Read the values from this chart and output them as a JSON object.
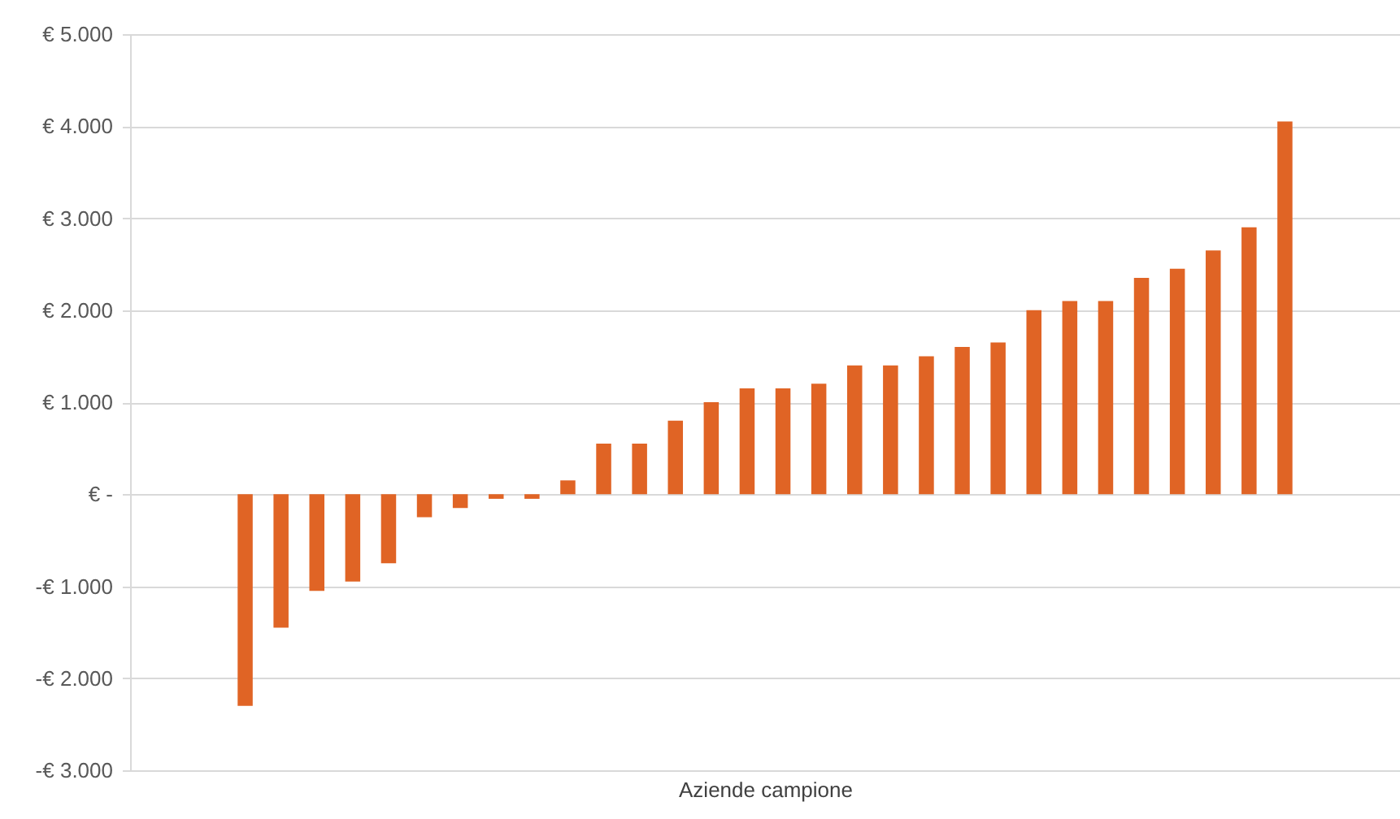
{
  "chart_data": {
    "type": "bar",
    "xlabel": "Aziende campione",
    "categories": [
      null,
      null,
      null,
      null,
      null,
      null,
      null,
      null,
      null,
      null,
      null,
      null,
      null,
      null,
      null,
      null,
      null,
      null,
      null,
      null,
      null,
      null,
      null,
      null,
      null,
      null,
      null,
      null,
      null,
      null,
      null,
      null,
      null,
      null,
      null,
      null
    ],
    "values": [
      null,
      null,
      null,
      -2300,
      -1450,
      -1050,
      -950,
      -750,
      -250,
      -150,
      -50,
      -50,
      150,
      550,
      550,
      800,
      1000,
      1150,
      1150,
      1200,
      1400,
      1400,
      1500,
      1600,
      1650,
      2000,
      2100,
      2100,
      2350,
      2450,
      2650,
      2900,
      4050,
      null,
      null,
      null
    ],
    "color": "#e06425",
    "ylim": [
      -3000,
      5000
    ],
    "yticks": [
      {
        "value": -3000,
        "label": "-€ 3.000"
      },
      {
        "value": -2000,
        "label": "-€ 2.000"
      },
      {
        "value": -1000,
        "label": "-€ 1.000"
      },
      {
        "value": 0,
        "label": "€ -"
      },
      {
        "value": 1000,
        "label": "€ 1.000"
      },
      {
        "value": 2000,
        "label": "€ 2.000"
      },
      {
        "value": 3000,
        "label": "€ 3.000"
      },
      {
        "value": 4000,
        "label": "€ 4.000"
      },
      {
        "value": 5000,
        "label": "€ 5.000"
      }
    ],
    "grid": "y",
    "tick_labels": "y"
  }
}
